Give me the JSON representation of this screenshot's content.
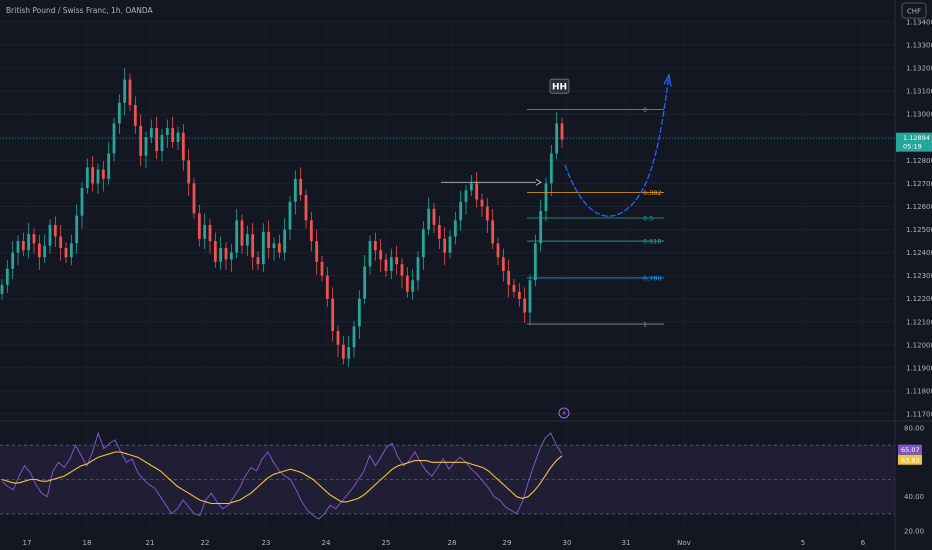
{
  "header": {
    "symbol_title": "British Pound / Swiss Franc, 1h, OANDA",
    "currency_badge": "CHF"
  },
  "colors": {
    "background": "#131722",
    "up": "#26a69a",
    "down": "#ef5350",
    "rsi_line": "#7e57c2",
    "rsi_ma": "#f0c33c",
    "rsi_band": "#2a2546",
    "projection": "#2962ff",
    "fib_0382": "#f59d1b",
    "fib_05": "#26a69a",
    "fib_0618": "#26a69a",
    "fib_0786": "#2196f3",
    "fib_edge": "#8a8d96"
  },
  "annotations": {
    "hh_label": "HH",
    "lightning_icon": "lightning-icon"
  },
  "fib_levels": [
    {
      "label": "0",
      "price": 1.1302
    },
    {
      "label": "0.382",
      "price": 1.1266
    },
    {
      "label": "0.5",
      "price": 1.1255
    },
    {
      "label": "0.618",
      "price": 1.1245
    },
    {
      "label": "0.786",
      "price": 1.1229
    },
    {
      "label": "1",
      "price": 1.1209
    }
  ],
  "price_tag": {
    "value": "1.12894",
    "countdown": "05:19",
    "price": 1.12894
  },
  "rsi_tags": [
    {
      "value": "65.07",
      "level": 65.07
    },
    {
      "value": "63.83",
      "level": 63.83
    }
  ],
  "chart_data": {
    "type": "candlestick",
    "title": "British Pound / Swiss Franc, 1h, OANDA",
    "price_axis": {
      "ticks": [
        "1.13400",
        "1.13300",
        "1.13200",
        "1.13100",
        "1.13000",
        "1.12900",
        "1.12800",
        "1.12700",
        "1.12600",
        "1.12500",
        "1.12400",
        "1.12300",
        "1.12200",
        "1.12100",
        "1.12000",
        "1.11900",
        "1.11800",
        "1.11700"
      ],
      "range": [
        1.117,
        1.134
      ]
    },
    "time_axis": {
      "ticks": [
        "17",
        "18",
        "21",
        "22",
        "23",
        "24",
        "25",
        "28",
        "29",
        "30",
        "31",
        "Nov",
        "5",
        "6"
      ]
    },
    "rsi": {
      "ticks": [
        "80.00",
        "40.00",
        "20.00"
      ],
      "range": [
        20,
        80
      ],
      "band": [
        30,
        70
      ],
      "midline": 50,
      "values": [
        49,
        46,
        44,
        52,
        58,
        54,
        47,
        42,
        40,
        55,
        60,
        57,
        62,
        70,
        64,
        58,
        66,
        77,
        68,
        71,
        73,
        66,
        60,
        62,
        54,
        50,
        47,
        45,
        40,
        35,
        30,
        33,
        38,
        34,
        30,
        29,
        38,
        42,
        37,
        33,
        35,
        40,
        45,
        52,
        57,
        55,
        62,
        66,
        60,
        55,
        52,
        50,
        44,
        37,
        32,
        29,
        27,
        30,
        35,
        33,
        37,
        41,
        45,
        50,
        55,
        64,
        58,
        63,
        69,
        71,
        63,
        58,
        61,
        66,
        60,
        55,
        52,
        57,
        62,
        56,
        60,
        63,
        60,
        56,
        53,
        49,
        45,
        40,
        38,
        34,
        32,
        30,
        37,
        48,
        58,
        67,
        74,
        77,
        70,
        65
      ],
      "ma_values": [
        50,
        49,
        48,
        48,
        49,
        50,
        50,
        49,
        49,
        50,
        51,
        52,
        54,
        56,
        58,
        59,
        61,
        63,
        64,
        65,
        66,
        66,
        65,
        64,
        63,
        61,
        59,
        57,
        55,
        52,
        49,
        46,
        44,
        42,
        40,
        38,
        37,
        36,
        36,
        36,
        36,
        37,
        38,
        40,
        42,
        45,
        48,
        51,
        53,
        54,
        55,
        56,
        55,
        54,
        52,
        50,
        47,
        44,
        41,
        39,
        37,
        37,
        38,
        39,
        41,
        44,
        47,
        50,
        53,
        56,
        58,
        59,
        60,
        61,
        61,
        61,
        60,
        60,
        60,
        60,
        60,
        60,
        60,
        59,
        58,
        57,
        55,
        52,
        49,
        46,
        43,
        40,
        39,
        40,
        43,
        47,
        52,
        57,
        61,
        63.8
      ]
    },
    "series": [
      {
        "values": [
          1.1226,
          1.1233,
          1.124,
          1.1245,
          1.1241,
          1.1248,
          1.1244,
          1.1238,
          1.1243,
          1.1252,
          1.1247,
          1.1242,
          1.1238,
          1.1244,
          1.1256,
          1.1268,
          1.1277,
          1.127,
          1.1276,
          1.1272,
          1.1283,
          1.1296,
          1.1305,
          1.1315,
          1.1304,
          1.1295,
          1.1282,
          1.129,
          1.1294,
          1.1284,
          1.1291,
          1.1294,
          1.1288,
          1.1292,
          1.128,
          1.127,
          1.1257,
          1.1246,
          1.1252,
          1.1245,
          1.1236,
          1.1242,
          1.1237,
          1.124,
          1.1254,
          1.1243,
          1.1248,
          1.1238,
          1.1235,
          1.1249,
          1.1242,
          1.1244,
          1.124,
          1.125,
          1.1262,
          1.1272,
          1.1265,
          1.1254,
          1.1245,
          1.1236,
          1.123,
          1.122,
          1.1206,
          1.12,
          1.1194,
          1.1199,
          1.1208,
          1.122,
          1.1234,
          1.1245,
          1.1241,
          1.1237,
          1.1232,
          1.1238,
          1.1235,
          1.123,
          1.1223,
          1.1228,
          1.1238,
          1.125,
          1.1259,
          1.1252,
          1.1246,
          1.124,
          1.1247,
          1.1254,
          1.1262,
          1.1267,
          1.127,
          1.1263,
          1.126,
          1.1254,
          1.1244,
          1.1238,
          1.1232,
          1.1226,
          1.1223,
          1.122,
          1.1214,
          1.1228,
          1.1244,
          1.1258,
          1.127,
          1.1283,
          1.1296,
          1.1289
        ]
      }
    ]
  }
}
